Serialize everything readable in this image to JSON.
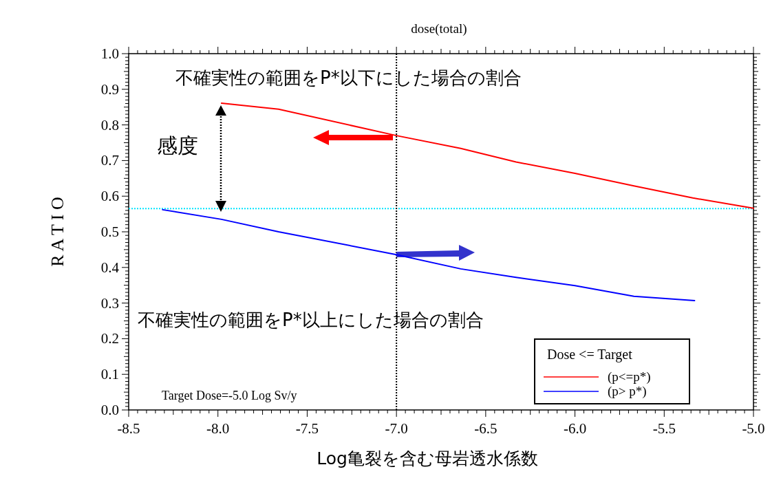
{
  "chart_data": {
    "type": "line",
    "title": "dose(total)",
    "xlabel": "Log亀裂を含む母岩透水係数",
    "ylabel": "R A T I O",
    "legend_title": "Dose <= Target",
    "xlim": [
      -8.5,
      -5.0
    ],
    "ylim": [
      0.0,
      1.0
    ],
    "xticks": [
      {
        "value": -8.5,
        "label": "-8.5"
      },
      {
        "value": -8.0,
        "label": "-8.0"
      },
      {
        "value": -7.5,
        "label": "-7.5"
      },
      {
        "value": -7.0,
        "label": "-7.0"
      },
      {
        "value": -6.5,
        "label": "-6.5"
      },
      {
        "value": -6.0,
        "label": "-6.0"
      },
      {
        "value": -5.5,
        "label": "-5.5"
      },
      {
        "value": -5.0,
        "label": "-5.0"
      }
    ],
    "yticks": [
      {
        "value": 0.0,
        "label": "0.0"
      },
      {
        "value": 0.1,
        "label": "0.1"
      },
      {
        "value": 0.2,
        "label": "0.2"
      },
      {
        "value": 0.3,
        "label": "0.3"
      },
      {
        "value": 0.4,
        "label": "0.4"
      },
      {
        "value": 0.5,
        "label": "0.5"
      },
      {
        "value": 0.6,
        "label": "0.6"
      },
      {
        "value": 0.7,
        "label": "0.7"
      },
      {
        "value": 0.8,
        "label": "0.8"
      },
      {
        "value": 0.9,
        "label": "0.9"
      },
      {
        "value": 1.0,
        "label": "1.0"
      }
    ],
    "series": [
      {
        "name": "(p<=p*)",
        "color": "#ff0000",
        "x": [
          -7.98,
          -7.66,
          -7.0,
          -6.64,
          -6.33,
          -6.0,
          -5.67,
          -5.34,
          -5.0
        ],
        "values": [
          0.861,
          0.844,
          0.77,
          0.734,
          0.696,
          0.664,
          0.629,
          0.595,
          0.566
        ]
      },
      {
        "name": "(p> p*)",
        "color": "#0000ff",
        "x": [
          -8.31,
          -7.98,
          -7.66,
          -7.0,
          -6.64,
          -6.33,
          -6.0,
          -5.67,
          -5.33
        ],
        "values": [
          0.562,
          0.535,
          0.5,
          0.436,
          0.396,
          0.372,
          0.349,
          0.319,
          0.307
        ]
      }
    ],
    "ref_lines": [
      {
        "axis": "y",
        "value": 0.565,
        "color": "#00e5ff",
        "line_style": "dotted"
      },
      {
        "axis": "x",
        "value": -7.0,
        "color": "#000000",
        "line_style": "dotted"
      }
    ],
    "annotations": [
      "不確実性の範囲をP*以下にした場合の割合",
      "感度",
      "不確実性の範囲をP*以上にした場合の割合",
      "Target Dose=-5.0 Log Sv/y"
    ],
    "legend": "bottom right",
    "grid": false,
    "marker": "none",
    "line_style": "solid"
  }
}
